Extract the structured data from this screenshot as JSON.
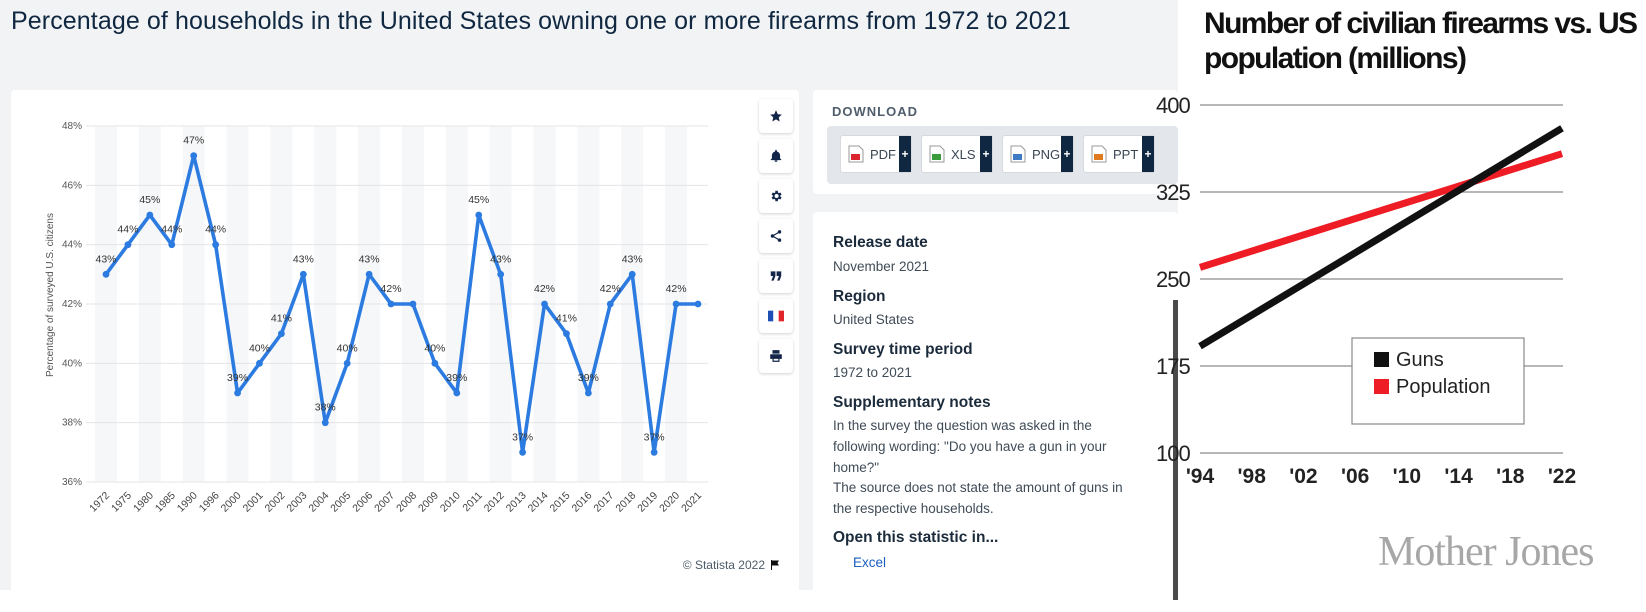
{
  "statista": {
    "title": "Percentage of households in the United States owning one or more firearms from 1972 to 2021",
    "copyright": "© Statista 2022",
    "toolbar": {
      "icons": [
        "star-icon",
        "bell-icon",
        "gear-icon",
        "share-icon",
        "quote-icon",
        "flag-fr-icon",
        "print-icon"
      ]
    },
    "download": {
      "label": "DOWNLOAD",
      "buttons": [
        {
          "label": "PDF",
          "icon": "pdf-file-icon",
          "color": "#d9252b"
        },
        {
          "label": "XLS",
          "icon": "xls-file-icon",
          "color": "#3a9b3a"
        },
        {
          "label": "PNG",
          "icon": "png-file-icon",
          "color": "#3e7bc4"
        },
        {
          "label": "PPT",
          "icon": "ppt-file-icon",
          "color": "#e07a1f"
        }
      ]
    },
    "info": {
      "release_date_label": "Release date",
      "release_date": "November 2021",
      "region_label": "Region",
      "region": "United States",
      "period_label": "Survey time period",
      "period": "1972 to 2021",
      "notes_label": "Supplementary notes",
      "notes_1": "In the survey the question was asked in the following wording: \"Do you have a gun in your home?\"",
      "notes_2": "The source does not state the amount of guns in the respective households.",
      "open_label": "Open this statistic in...",
      "open_first": "Excel"
    }
  },
  "chart_data": [
    {
      "type": "line",
      "title": "Percentage of households in the United States owning one or more firearms from 1972 to 2021",
      "ylabel": "Percentage of surveyed U.S. citizens",
      "xlabel": "",
      "ylim": [
        36,
        48
      ],
      "yticks": [
        "36%",
        "38%",
        "40%",
        "42%",
        "44%",
        "46%",
        "48%"
      ],
      "line_color": "#2c7be0",
      "categories": [
        "1972",
        "1975",
        "1980",
        "1985",
        "1990",
        "1996",
        "2000",
        "2001",
        "2002",
        "2003",
        "2004",
        "2005",
        "2006",
        "2007",
        "2008",
        "2009",
        "2010",
        "2011",
        "2012",
        "2013",
        "2014",
        "2015",
        "2016",
        "2017",
        "2018",
        "2019",
        "2020",
        "2021"
      ],
      "values": [
        43,
        44,
        45,
        44,
        47,
        44,
        39,
        40,
        41,
        43,
        38,
        40,
        43,
        42,
        42,
        40,
        39,
        45,
        43,
        37,
        42,
        41,
        39,
        42,
        43,
        37,
        42,
        42
      ],
      "labels": [
        "43%",
        "44%",
        "45%",
        "44%",
        "47%",
        "44%",
        "39%",
        "40%",
        "41%",
        "43%",
        "38%",
        "40%",
        "43%",
        "42%",
        "",
        "40%",
        "39%",
        "45%",
        "43%",
        "37%",
        "42%",
        "41%",
        "39%",
        "42%",
        "43%",
        "37%",
        "42%",
        ""
      ],
      "grid": true
    },
    {
      "type": "line",
      "title": "Number of civilian firearms vs. US population (millions)",
      "xticks": [
        "'94",
        "'98",
        "'02",
        "'06",
        "'10",
        "'14",
        "'18",
        "'22"
      ],
      "yticks": [
        "100",
        "175",
        "250",
        "325",
        "400"
      ],
      "ylim": [
        100,
        400
      ],
      "legend_position": "center-right",
      "series": [
        {
          "name": "Guns",
          "color": "#111111",
          "x": [
            1994,
            2022
          ],
          "values": [
            192,
            380
          ]
        },
        {
          "name": "Population",
          "color": "#ee1c25",
          "x": [
            1994,
            2022
          ],
          "values": [
            260,
            358
          ]
        }
      ],
      "grid": true
    }
  ],
  "mother_jones": {
    "title": "Number of civilian firearms vs. US population (millions)",
    "brand": "Mother Jones"
  }
}
